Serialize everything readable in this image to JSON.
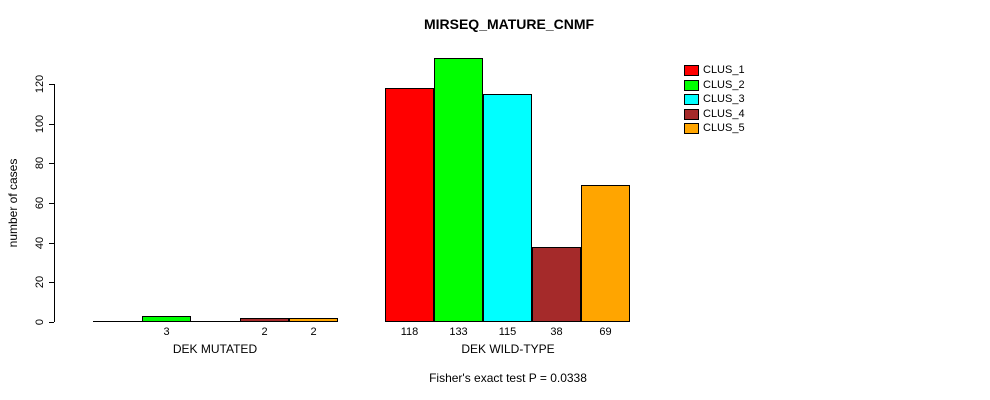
{
  "chart_data": {
    "type": "bar",
    "title": "MIRSEQ_MATURE_CNMF",
    "ylabel": "number of cases",
    "xlabel": "",
    "categories": [
      "DEK MUTATED",
      "DEK WILD-TYPE"
    ],
    "series": [
      {
        "name": "CLUS_1",
        "color": "#FF0000",
        "values": [
          0,
          118
        ]
      },
      {
        "name": "CLUS_2",
        "color": "#00FF00",
        "values": [
          3,
          133
        ]
      },
      {
        "name": "CLUS_3",
        "color": "#00FFFF",
        "values": [
          0,
          115
        ]
      },
      {
        "name": "CLUS_4",
        "color": "#A52A2A",
        "values": [
          2,
          38
        ]
      },
      {
        "name": "CLUS_5",
        "color": "#FFA500",
        "values": [
          2,
          69
        ]
      }
    ],
    "yticks": [
      0,
      20,
      40,
      60,
      80,
      100,
      120
    ],
    "ylim": [
      0,
      133
    ],
    "grid": false,
    "legend_position": "top-right",
    "bar_value_labels_shown_for_nonzero_only": true,
    "annotation": "Fisher's exact test P = 0.0338"
  }
}
